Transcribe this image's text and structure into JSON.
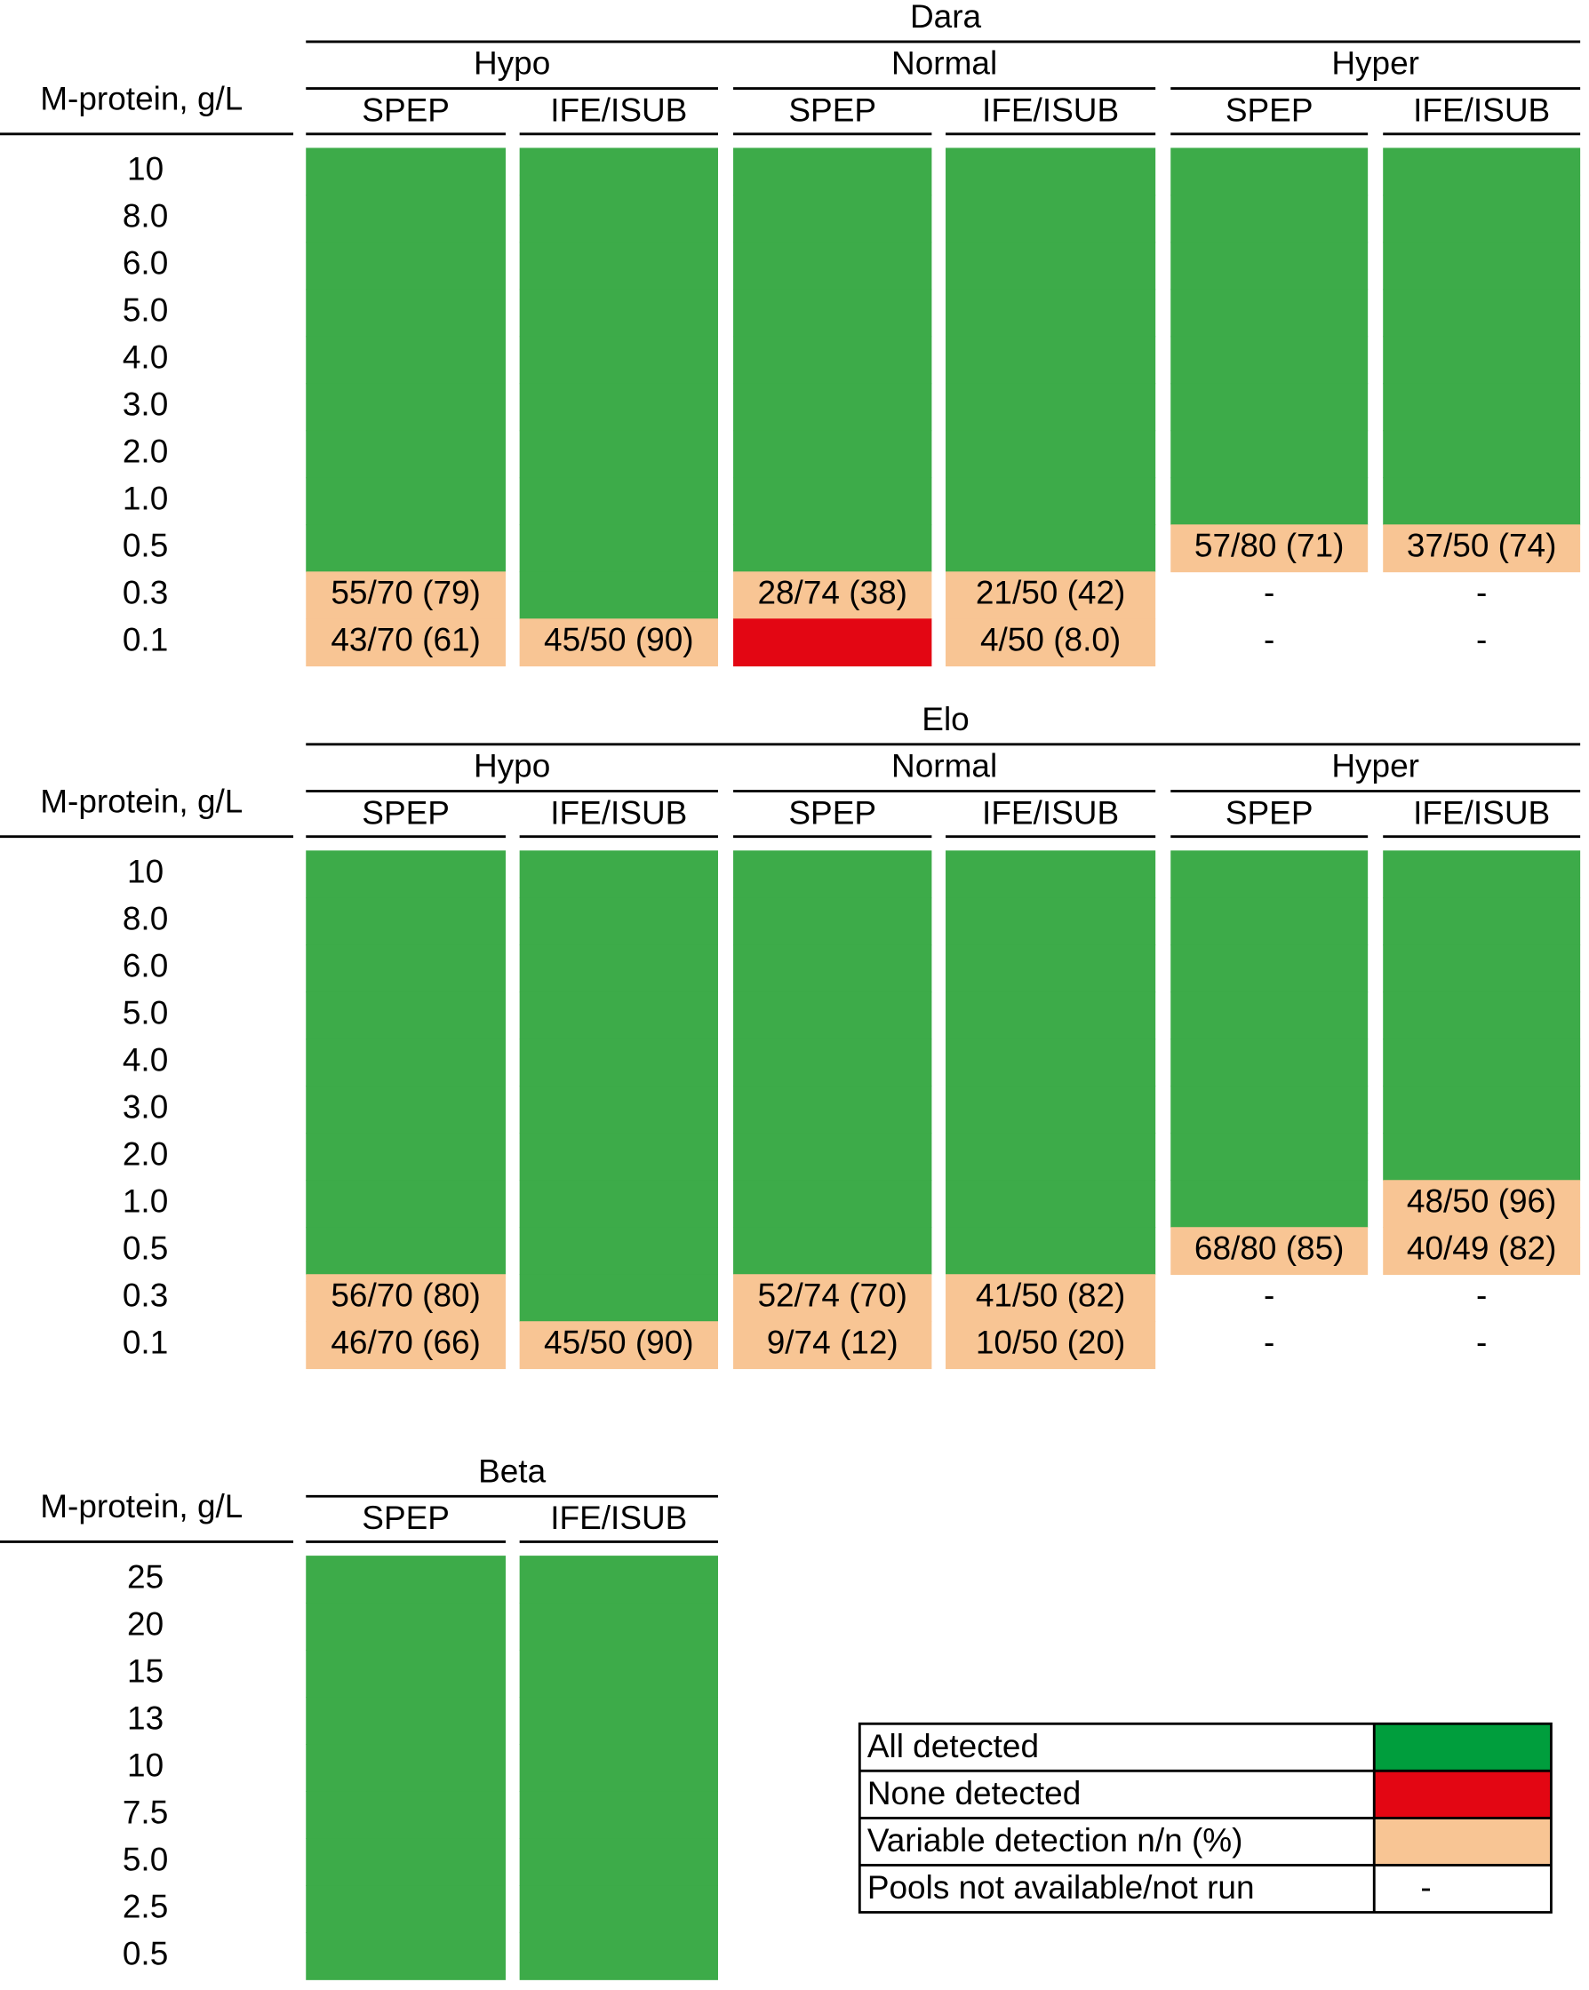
{
  "panels": [
    {
      "title": "Dara",
      "row_header": "M-protein, g/L",
      "rows": [
        "10",
        "8.0",
        "6.0",
        "5.0",
        "4.0",
        "3.0",
        "2.0",
        "1.0",
        "0.5",
        "0.3",
        "0.1"
      ],
      "groups": [
        {
          "label": "Hypo",
          "columns": [
            {
              "label": "SPEP",
              "cells": [
                "#3dab49",
                "#3dab49",
                "#3dab49",
                "#3dab49",
                "#3dab49",
                "#3dab49",
                "#3dab49",
                "#3dab49",
                "#3dab49",
                {
                  "text": "55/70 (79)",
                  "color": "#f8c594"
                },
                {
                  "text": "43/70 (61)",
                  "color": "#f8c594"
                }
              ]
            },
            {
              "label": "IFE/ISUB",
              "cells": [
                "#3dab49",
                "#3dab49",
                "#3dab49",
                "#3dab49",
                "#3dab49",
                "#3dab49",
                "#3dab49",
                "#3dab49",
                "#3dab49",
                "#3dab49",
                {
                  "text": "45/50 (90)",
                  "color": "#f8c594"
                }
              ]
            }
          ]
        },
        {
          "label": "Normal",
          "columns": [
            {
              "label": "SPEP",
              "cells": [
                "#3dab49",
                "#3dab49",
                "#3dab49",
                "#3dab49",
                "#3dab49",
                "#3dab49",
                "#3dab49",
                "#3dab49",
                "#3dab49",
                {
                  "text": "28/74 (38)",
                  "color": "#f8c594"
                },
                "#e30613"
              ]
            },
            {
              "label": "IFE/ISUB",
              "cells": [
                "#3dab49",
                "#3dab49",
                "#3dab49",
                "#3dab49",
                "#3dab49",
                "#3dab49",
                "#3dab49",
                "#3dab49",
                "#3dab49",
                {
                  "text": "21/50 (42)",
                  "color": "#f8c594"
                },
                {
                  "text": "4/50 (8.0)",
                  "color": "#f8c594"
                }
              ]
            }
          ]
        },
        {
          "label": "Hyper",
          "columns": [
            {
              "label": "SPEP",
              "cells": [
                "#3dab49",
                "#3dab49",
                "#3dab49",
                "#3dab49",
                "#3dab49",
                "#3dab49",
                "#3dab49",
                "#3dab49",
                {
                  "text": "57/80 (71)",
                  "color": "#f8c594"
                },
                {
                  "text": "-"
                },
                {
                  "text": "-"
                }
              ]
            },
            {
              "label": "IFE/ISUB",
              "cells": [
                "#3dab49",
                "#3dab49",
                "#3dab49",
                "#3dab49",
                "#3dab49",
                "#3dab49",
                "#3dab49",
                "#3dab49",
                {
                  "text": "37/50 (74)",
                  "color": "#f8c594"
                },
                {
                  "text": "-"
                },
                {
                  "text": "-"
                }
              ]
            }
          ]
        }
      ]
    },
    {
      "title": "Elo",
      "row_header": "M-protein, g/L",
      "rows": [
        "10",
        "8.0",
        "6.0",
        "5.0",
        "4.0",
        "3.0",
        "2.0",
        "1.0",
        "0.5",
        "0.3",
        "0.1"
      ],
      "groups": [
        {
          "label": "Hypo",
          "columns": [
            {
              "label": "SPEP",
              "cells": [
                "#3dab49",
                "#3dab49",
                "#3dab49",
                "#3dab49",
                "#3dab49",
                "#3dab49",
                "#3dab49",
                "#3dab49",
                "#3dab49",
                {
                  "text": "56/70 (80)",
                  "color": "#f8c594"
                },
                {
                  "text": "46/70 (66)",
                  "color": "#f8c594"
                }
              ]
            },
            {
              "label": "IFE/ISUB",
              "cells": [
                "#3dab49",
                "#3dab49",
                "#3dab49",
                "#3dab49",
                "#3dab49",
                "#3dab49",
                "#3dab49",
                "#3dab49",
                "#3dab49",
                "#3dab49",
                {
                  "text": "45/50 (90)",
                  "color": "#f8c594"
                }
              ]
            }
          ]
        },
        {
          "label": "Normal",
          "columns": [
            {
              "label": "SPEP",
              "cells": [
                "#3dab49",
                "#3dab49",
                "#3dab49",
                "#3dab49",
                "#3dab49",
                "#3dab49",
                "#3dab49",
                "#3dab49",
                "#3dab49",
                {
                  "text": "52/74 (70)",
                  "color": "#f8c594"
                },
                {
                  "text": "9/74 (12)",
                  "color": "#f8c594"
                }
              ]
            },
            {
              "label": "IFE/ISUB",
              "cells": [
                "#3dab49",
                "#3dab49",
                "#3dab49",
                "#3dab49",
                "#3dab49",
                "#3dab49",
                "#3dab49",
                "#3dab49",
                "#3dab49",
                {
                  "text": "41/50 (82)",
                  "color": "#f8c594"
                },
                {
                  "text": "10/50 (20)",
                  "color": "#f8c594"
                }
              ]
            }
          ]
        },
        {
          "label": "Hyper",
          "columns": [
            {
              "label": "SPEP",
              "cells": [
                "#3dab49",
                "#3dab49",
                "#3dab49",
                "#3dab49",
                "#3dab49",
                "#3dab49",
                "#3dab49",
                "#3dab49",
                {
                  "text": "68/80 (85)",
                  "color": "#f8c594"
                },
                {
                  "text": "-"
                },
                {
                  "text": "-"
                }
              ]
            },
            {
              "label": "IFE/ISUB",
              "cells": [
                "#3dab49",
                "#3dab49",
                "#3dab49",
                "#3dab49",
                "#3dab49",
                "#3dab49",
                "#3dab49",
                {
                  "text": "48/50 (96)",
                  "color": "#f8c594"
                },
                {
                  "text": "40/49 (82)",
                  "color": "#f8c594"
                },
                {
                  "text": "-"
                },
                {
                  "text": "-"
                }
              ]
            }
          ]
        }
      ]
    },
    {
      "title": "Beta",
      "row_header": "M-protein, g/L",
      "rows": [
        "25",
        "20",
        "15",
        "13",
        "10",
        "7.5",
        "5.0",
        "2.5",
        "0.5"
      ],
      "columns": [
        {
          "label": "SPEP",
          "cells": [
            "#3dab49",
            "#3dab49",
            "#3dab49",
            "#3dab49",
            "#3dab49",
            "#3dab49",
            "#3dab49",
            "#3dab49",
            "#3dab49"
          ]
        },
        {
          "label": "IFE/ISUB",
          "cells": [
            "#3dab49",
            "#3dab49",
            "#3dab49",
            "#3dab49",
            "#3dab49",
            "#3dab49",
            "#3dab49",
            "#3dab49",
            "#3dab49"
          ]
        }
      ]
    }
  ],
  "legend": [
    {
      "label": "All detected",
      "color": "#009e3d"
    },
    {
      "label": "None detected",
      "color": "#e30613"
    },
    {
      "label": "Variable detection n/n (%)",
      "color": "#f8c594"
    },
    {
      "label": "Pools not available/not run",
      "symbol": "-"
    }
  ]
}
